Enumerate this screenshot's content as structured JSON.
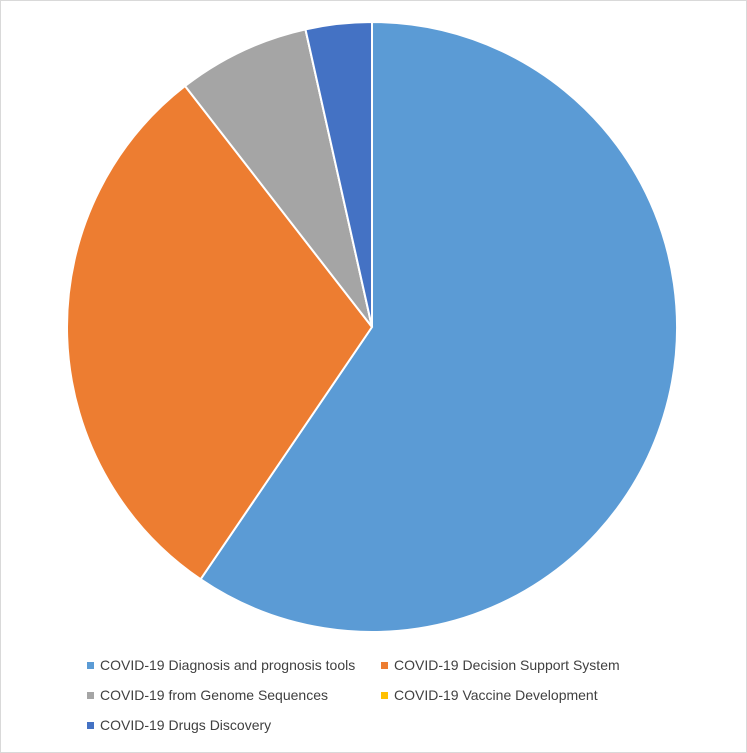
{
  "chart_data": {
    "type": "pie",
    "title": "",
    "start_angle_deg": 0,
    "direction": "clockwise",
    "legend_position": "bottom",
    "slices": [
      {
        "label": "COVID-19 Diagnosis and prognosis tools",
        "value": 59.5,
        "color": "#5b9bd5"
      },
      {
        "label": "COVID-19 Decision Support System",
        "value": 30.0,
        "color": "#ed7d31"
      },
      {
        "label": "COVID-19 from Genome Sequences",
        "value": 7.0,
        "color": "#a5a5a5"
      },
      {
        "label": "COVID-19 Vaccine Development",
        "value": 0.0,
        "color": "#ffc000"
      },
      {
        "label": "COVID-19 Drugs Discovery",
        "value": 3.5,
        "color": "#4472c4"
      }
    ]
  }
}
